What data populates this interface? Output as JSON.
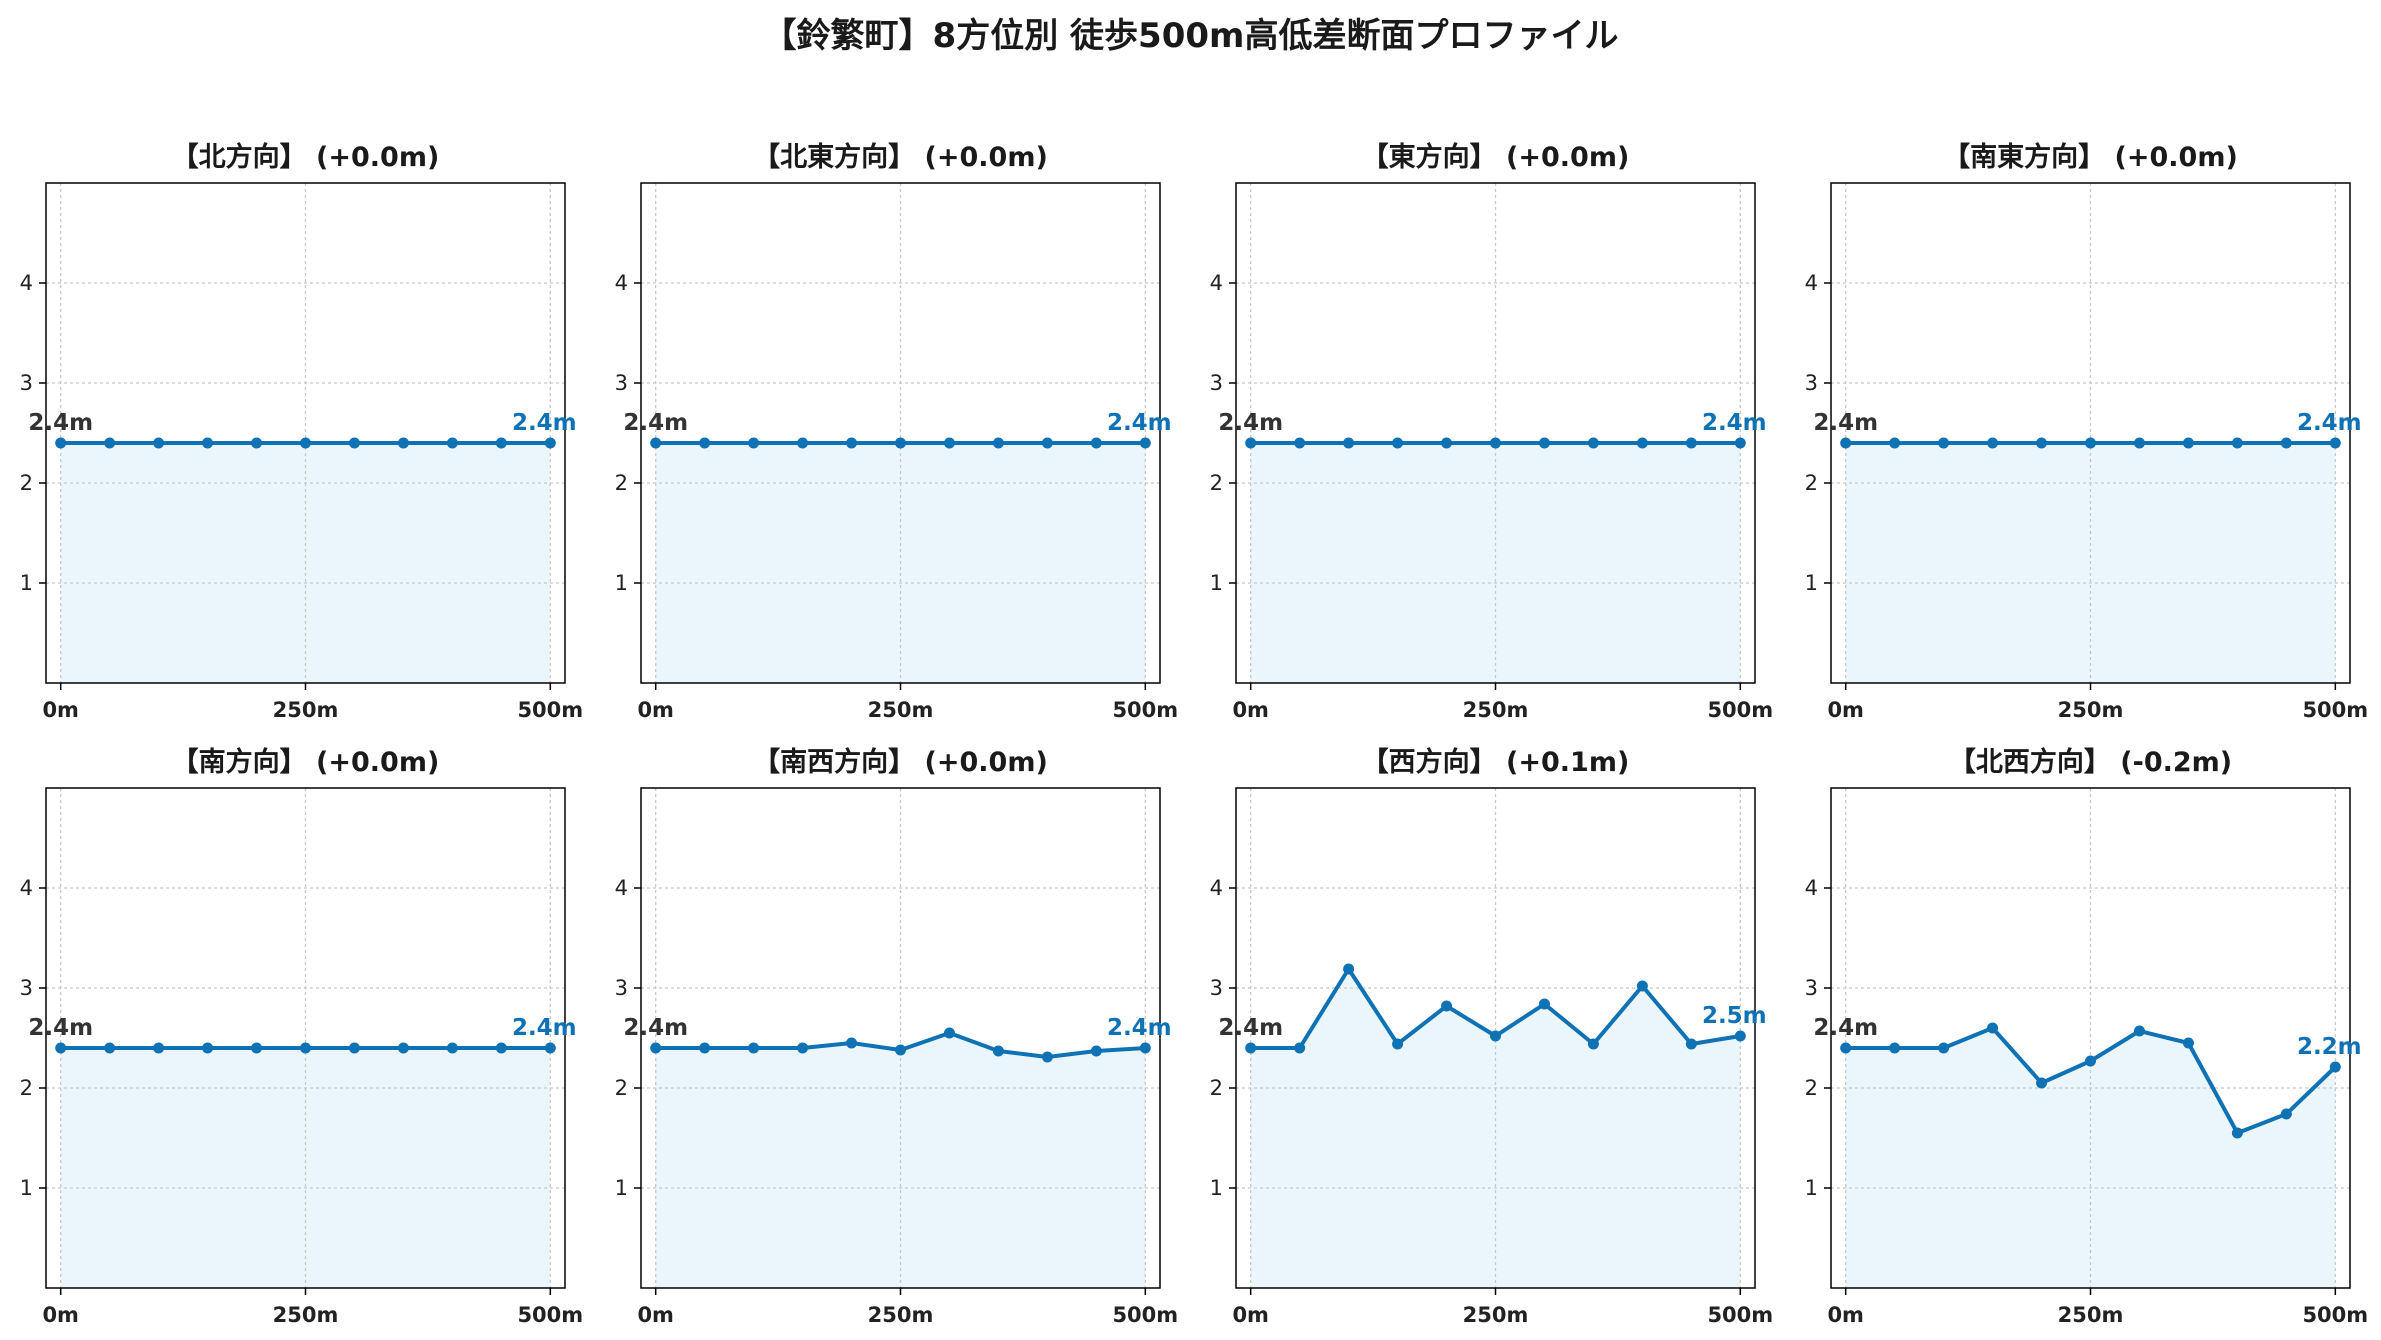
{
  "figure": {
    "title": "【鈴繁町】8方位別 徒歩500m高低差断面プロファイル"
  },
  "colors": {
    "line": "#0f72b5",
    "fill": "#eaf6fc",
    "grid": "#c8c8c8",
    "start_label": "#333333",
    "end_label": "#0f72b5"
  },
  "chart_data": [
    {
      "type": "line",
      "title": "【北方向】 (+0.0m)",
      "x": [
        0,
        50,
        100,
        150,
        200,
        250,
        300,
        350,
        400,
        450,
        500
      ],
      "values": [
        2.4,
        2.4,
        2.4,
        2.4,
        2.4,
        2.4,
        2.4,
        2.4,
        2.4,
        2.4,
        2.4
      ],
      "start_label": "2.4m",
      "end_label": "2.4m",
      "xticks": [
        "0m",
        "250m",
        "500m"
      ],
      "yticks": [
        1,
        2,
        3,
        4
      ],
      "xlim": [
        -15,
        515
      ],
      "ylim": [
        0,
        5
      ],
      "grid": true
    },
    {
      "type": "line",
      "title": "【北東方向】 (+0.0m)",
      "x": [
        0,
        50,
        100,
        150,
        200,
        250,
        300,
        350,
        400,
        450,
        500
      ],
      "values": [
        2.4,
        2.4,
        2.4,
        2.4,
        2.4,
        2.4,
        2.4,
        2.4,
        2.4,
        2.4,
        2.4
      ],
      "start_label": "2.4m",
      "end_label": "2.4m",
      "xticks": [
        "0m",
        "250m",
        "500m"
      ],
      "yticks": [
        1,
        2,
        3,
        4
      ],
      "xlim": [
        -15,
        515
      ],
      "ylim": [
        0,
        5
      ],
      "grid": true
    },
    {
      "type": "line",
      "title": "【東方向】 (+0.0m)",
      "x": [
        0,
        50,
        100,
        150,
        200,
        250,
        300,
        350,
        400,
        450,
        500
      ],
      "values": [
        2.4,
        2.4,
        2.4,
        2.4,
        2.4,
        2.4,
        2.4,
        2.4,
        2.4,
        2.4,
        2.4
      ],
      "start_label": "2.4m",
      "end_label": "2.4m",
      "xticks": [
        "0m",
        "250m",
        "500m"
      ],
      "yticks": [
        1,
        2,
        3,
        4
      ],
      "xlim": [
        -15,
        515
      ],
      "ylim": [
        0,
        5
      ],
      "grid": true
    },
    {
      "type": "line",
      "title": "【南東方向】 (+0.0m)",
      "x": [
        0,
        50,
        100,
        150,
        200,
        250,
        300,
        350,
        400,
        450,
        500
      ],
      "values": [
        2.4,
        2.4,
        2.4,
        2.4,
        2.4,
        2.4,
        2.4,
        2.4,
        2.4,
        2.4,
        2.4
      ],
      "start_label": "2.4m",
      "end_label": "2.4m",
      "xticks": [
        "0m",
        "250m",
        "500m"
      ],
      "yticks": [
        1,
        2,
        3,
        4
      ],
      "xlim": [
        -15,
        515
      ],
      "ylim": [
        0,
        5
      ],
      "grid": true
    },
    {
      "type": "line",
      "title": "【南方向】 (+0.0m)",
      "x": [
        0,
        50,
        100,
        150,
        200,
        250,
        300,
        350,
        400,
        450,
        500
      ],
      "values": [
        2.4,
        2.4,
        2.4,
        2.4,
        2.4,
        2.4,
        2.4,
        2.4,
        2.4,
        2.4,
        2.4
      ],
      "start_label": "2.4m",
      "end_label": "2.4m",
      "xticks": [
        "0m",
        "250m",
        "500m"
      ],
      "yticks": [
        1,
        2,
        3,
        4
      ],
      "xlim": [
        -15,
        515
      ],
      "ylim": [
        0,
        5
      ],
      "grid": true
    },
    {
      "type": "line",
      "title": "【南西方向】 (+0.0m)",
      "x": [
        0,
        50,
        100,
        150,
        200,
        250,
        300,
        350,
        400,
        450,
        500
      ],
      "values": [
        2.4,
        2.4,
        2.4,
        2.4,
        2.45,
        2.38,
        2.55,
        2.37,
        2.31,
        2.37,
        2.4
      ],
      "start_label": "2.4m",
      "end_label": "2.4m",
      "xticks": [
        "0m",
        "250m",
        "500m"
      ],
      "yticks": [
        1,
        2,
        3,
        4
      ],
      "xlim": [
        -15,
        515
      ],
      "ylim": [
        0,
        5
      ],
      "grid": true
    },
    {
      "type": "line",
      "title": "【西方向】 (+0.1m)",
      "x": [
        0,
        50,
        100,
        150,
        200,
        250,
        300,
        350,
        400,
        450,
        500
      ],
      "values": [
        2.4,
        2.4,
        3.19,
        2.44,
        2.82,
        2.52,
        2.84,
        2.44,
        3.02,
        2.44,
        2.52
      ],
      "start_label": "2.4m",
      "end_label": "2.5m",
      "xticks": [
        "0m",
        "250m",
        "500m"
      ],
      "yticks": [
        1,
        2,
        3,
        4
      ],
      "xlim": [
        -15,
        515
      ],
      "ylim": [
        0,
        5
      ],
      "grid": true
    },
    {
      "type": "line",
      "title": "【北西方向】 (-0.2m)",
      "x": [
        0,
        50,
        100,
        150,
        200,
        250,
        300,
        350,
        400,
        450,
        500
      ],
      "values": [
        2.4,
        2.4,
        2.4,
        2.6,
        2.05,
        2.27,
        2.57,
        2.45,
        1.55,
        1.74,
        2.21
      ],
      "start_label": "2.4m",
      "end_label": "2.2m",
      "xticks": [
        "0m",
        "250m",
        "500m"
      ],
      "yticks": [
        1,
        2,
        3,
        4
      ],
      "xlim": [
        -15,
        515
      ],
      "ylim": [
        0,
        5
      ],
      "grid": true
    }
  ]
}
